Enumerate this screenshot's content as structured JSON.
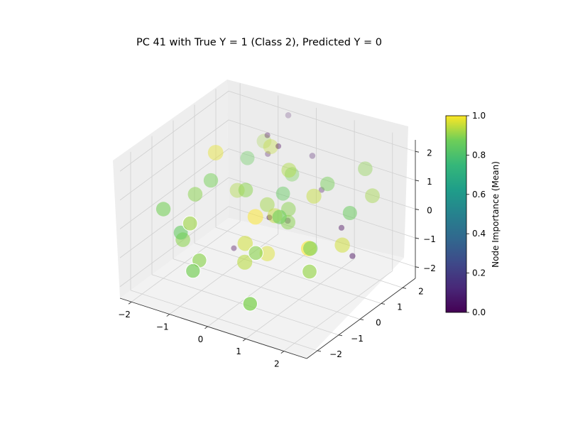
{
  "chart_data": {
    "type": "scatter",
    "projection": "3d",
    "title": "PC 41 with True Y = 1 (Class 2), Predicted Y = 0",
    "xlabel": "",
    "ylabel": "",
    "zlabel": "",
    "xlim": [
      -2.3,
      2.6
    ],
    "ylim": [
      -2.5,
      2.6
    ],
    "zlim": [
      -2.4,
      2.4
    ],
    "x_ticks": [
      "−2",
      "−1",
      "0",
      "1",
      "2"
    ],
    "y_ticks": [
      "−2",
      "−1",
      "0",
      "1",
      "2"
    ],
    "z_ticks": [
      "−2",
      "−1",
      "0",
      "1",
      "2"
    ],
    "grid": true,
    "colormap": "viridis",
    "colorbar": {
      "label": "Node Importance (Mean)",
      "range": [
        0.0,
        1.0
      ],
      "ticks": [
        "0.0",
        "0.2",
        "0.4",
        "0.6",
        "0.8",
        "1.0"
      ]
    },
    "points": [
      {
        "x": -1.3,
        "y": 0.2,
        "z": 1.6,
        "importance": 0.98
      },
      {
        "x": -0.3,
        "y": 1.0,
        "z": 1.8,
        "importance": 0.95
      },
      {
        "x": -1.2,
        "y": -0.2,
        "z": 0.9,
        "importance": 0.88
      },
      {
        "x": 0.4,
        "y": 0.6,
        "z": 1.5,
        "importance": 0.93
      },
      {
        "x": 0.3,
        "y": 0.5,
        "z": 0.7,
        "importance": 0.85
      },
      {
        "x": 0.5,
        "y": 0.4,
        "z": 0.3,
        "importance": 0.9
      },
      {
        "x": 0.0,
        "y": 0.3,
        "z": 0.3,
        "importance": 0.92
      },
      {
        "x": 0.6,
        "y": 0.2,
        "z": 0.0,
        "importance": 0.9
      },
      {
        "x": -0.2,
        "y": 0.1,
        "z": -0.1,
        "importance": 1.0
      },
      {
        "x": 0.2,
        "y": 0.3,
        "z": 0.0,
        "importance": 0.95
      },
      {
        "x": 1.3,
        "y": 0.8,
        "z": 1.3,
        "importance": 0.88
      },
      {
        "x": 1.9,
        "y": 1.5,
        "z": 1.7,
        "importance": 0.9
      },
      {
        "x": 2.2,
        "y": 1.3,
        "z": 1.0,
        "importance": 0.92
      },
      {
        "x": -1.6,
        "y": -0.9,
        "z": -0.7,
        "importance": 0.85
      },
      {
        "x": -1.6,
        "y": -0.8,
        "z": -1.0,
        "importance": 0.9
      },
      {
        "x": -0.3,
        "y": -0.2,
        "z": -0.9,
        "importance": 0.96
      },
      {
        "x": 0.0,
        "y": 0.3,
        "z": -1.4,
        "importance": 0.97
      },
      {
        "x": 1.2,
        "y": 0.1,
        "z": -0.6,
        "importance": 1.0
      },
      {
        "x": 1.8,
        "y": 0.6,
        "z": -0.5,
        "importance": 0.96
      },
      {
        "x": -1.0,
        "y": -1.4,
        "z": -1.5,
        "importance": 0.88
      },
      {
        "x": -0.5,
        "y": 1.2,
        "z": 2.0,
        "importance": 0.0
      },
      {
        "x": -0.1,
        "y": 1.0,
        "z": 1.9,
        "importance": 0.0
      },
      {
        "x": 0.0,
        "y": 0.4,
        "z": -0.2,
        "importance": 0.0
      },
      {
        "x": -1.1,
        "y": 0.7,
        "z": -1.9,
        "importance": 0.0
      },
      {
        "x": -0.6,
        "y": 1.4,
        "z": 1.2,
        "importance": 0.02
      },
      {
        "x": 0.7,
        "y": 1.6,
        "z": 0.4,
        "importance": 0.03
      },
      {
        "x": 0.2,
        "y": 0.9,
        "z": -0.5,
        "importance": 0.04
      },
      {
        "x": 1.5,
        "y": 1.1,
        "z": -0.3,
        "importance": 0.02
      },
      {
        "x": 1.9,
        "y": 0.9,
        "z": -1.0,
        "importance": 0.03
      },
      {
        "x": 0.4,
        "y": 1.7,
        "z": 1.4,
        "importance": 0.05
      },
      {
        "x": -0.4,
        "y": 2.0,
        "z": 2.3,
        "importance": 0.04
      },
      {
        "x": -0.8,
        "y": 0.8,
        "z": 1.3,
        "importance": 0.86
      },
      {
        "x": -1.5,
        "y": -0.4,
        "z": 0.4,
        "importance": 0.9
      },
      {
        "x": -2.0,
        "y": -1.0,
        "z": 0.0,
        "importance": 0.88
      },
      {
        "x": -1.3,
        "y": -1.0,
        "z": -0.2,
        "importance": 0.92
      },
      {
        "x": -1.0,
        "y": -1.1,
        "z": -1.3,
        "importance": 0.9
      },
      {
        "x": -0.9,
        "y": 0.5,
        "z": 0.3,
        "importance": 0.93
      },
      {
        "x": 0.2,
        "y": -0.6,
        "z": -0.8,
        "importance": 0.9
      },
      {
        "x": 0.6,
        "y": -0.2,
        "z": 0.4,
        "importance": 0.87
      },
      {
        "x": 1.0,
        "y": 0.7,
        "z": 0.8,
        "importance": 0.95
      },
      {
        "x": 1.3,
        "y": 0.0,
        "z": -0.5,
        "importance": 0.88
      },
      {
        "x": 1.5,
        "y": -0.4,
        "z": -1.0,
        "importance": 0.91
      },
      {
        "x": 2.0,
        "y": 0.6,
        "z": 0.7,
        "importance": 0.86
      },
      {
        "x": -0.2,
        "y": -0.4,
        "z": -1.4,
        "importance": 0.94
      },
      {
        "x": 0.5,
        "y": -1.4,
        "z": -2.0,
        "importance": 0.89
      },
      {
        "x": -0.7,
        "y": 1.4,
        "z": 1.6,
        "importance": 0.92
      },
      {
        "x": 0.2,
        "y": 1.1,
        "z": 1.0,
        "importance": 0.88
      },
      {
        "x": -0.4,
        "y": 0.0,
        "z": 0.8,
        "importance": 0.9
      }
    ]
  }
}
